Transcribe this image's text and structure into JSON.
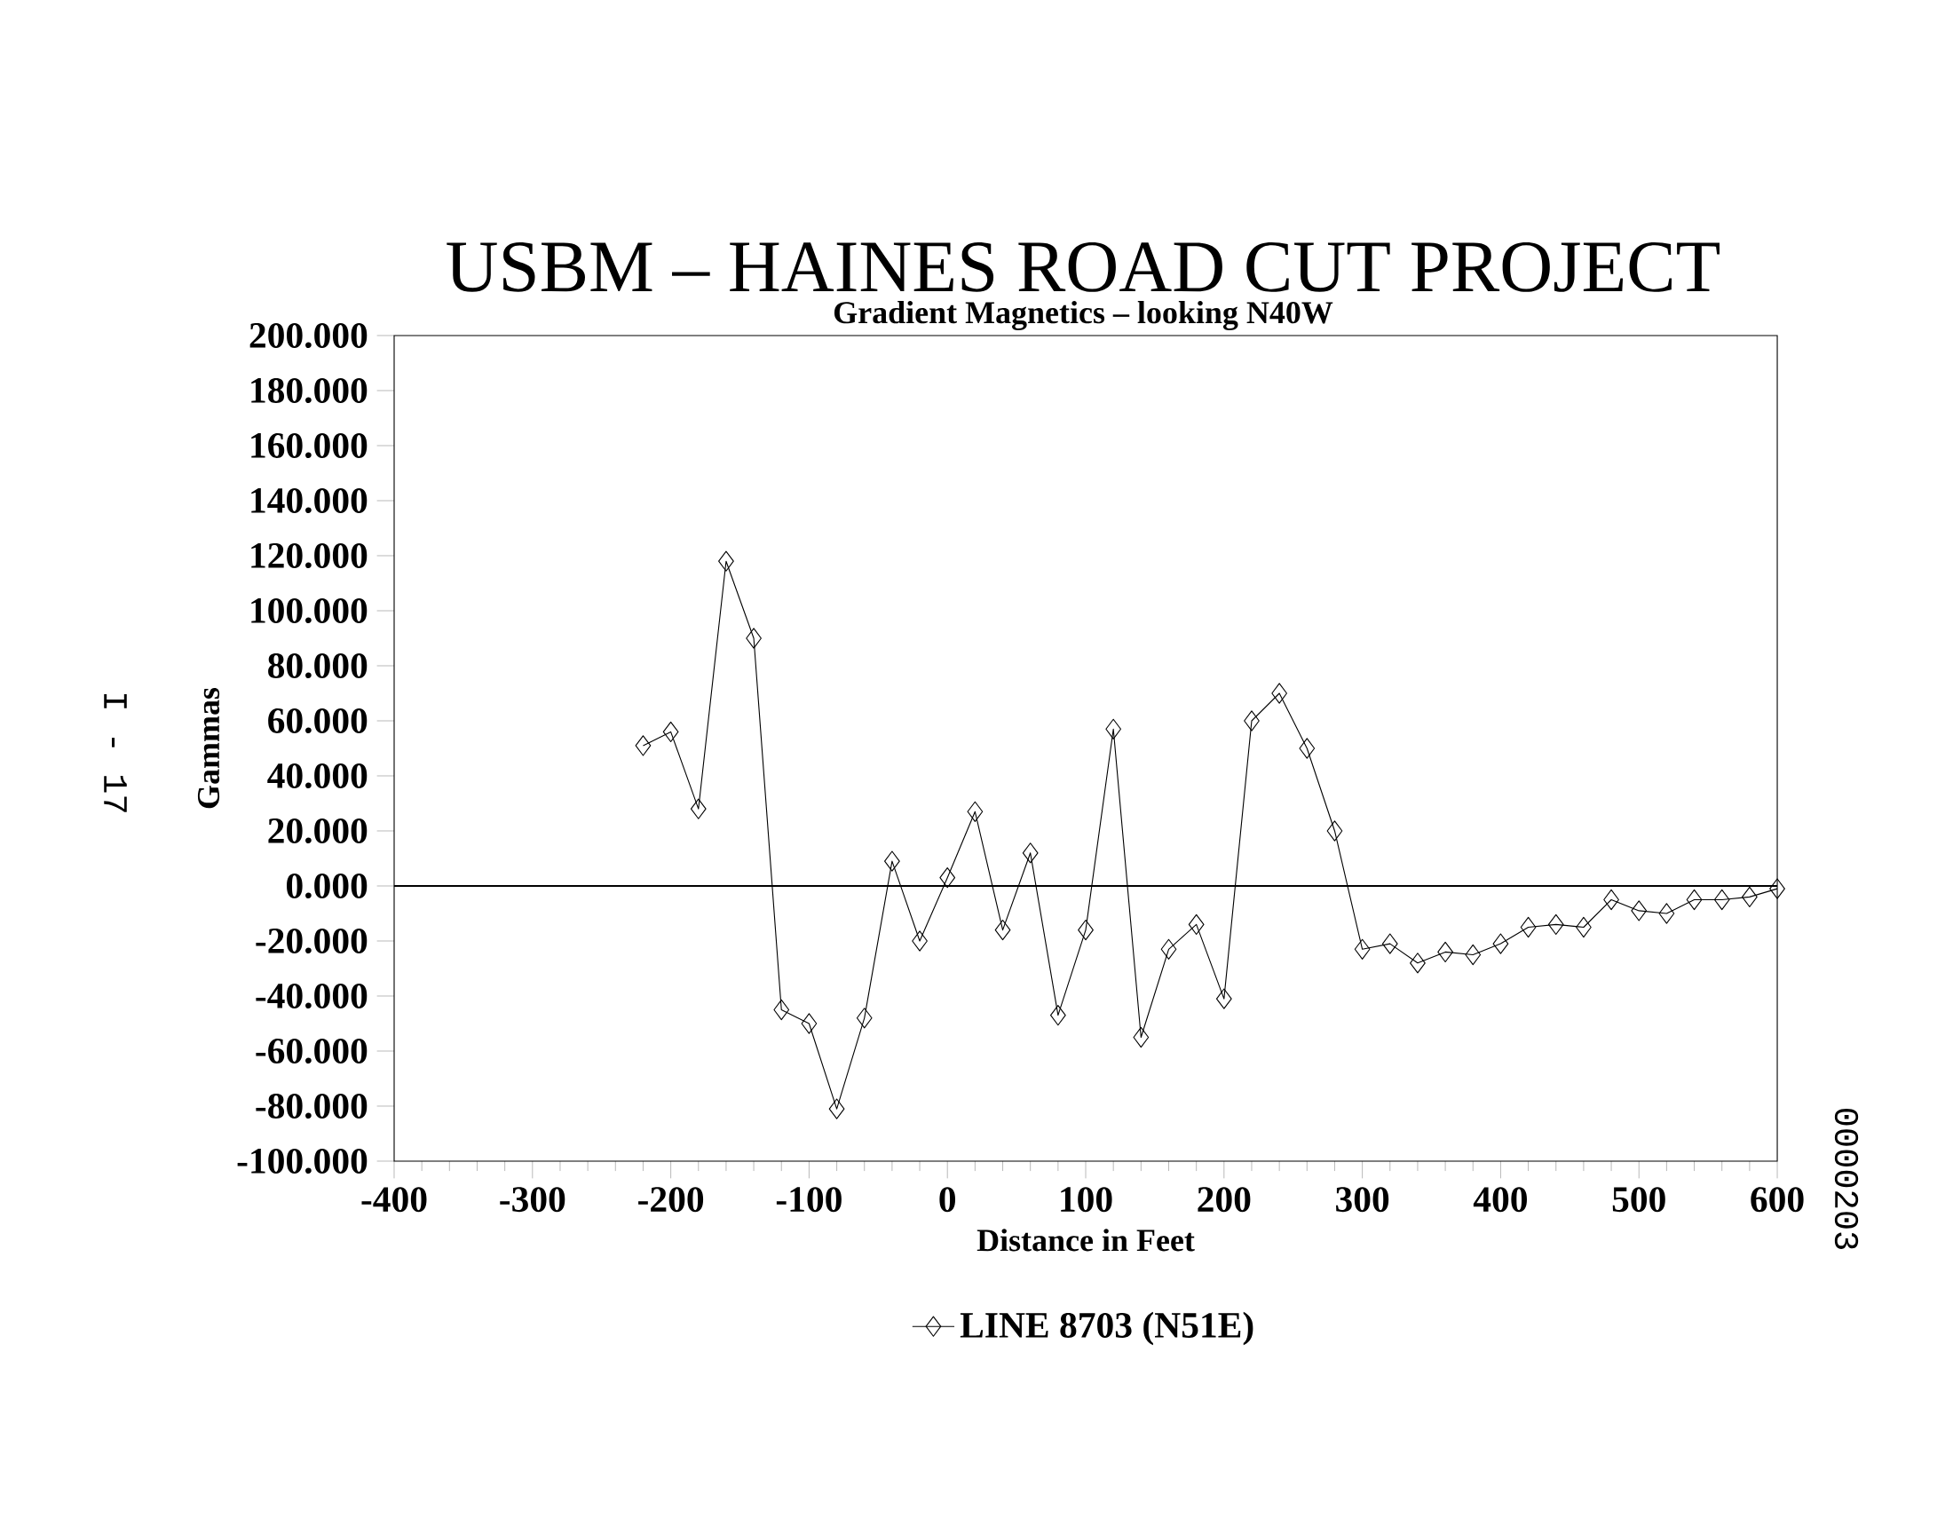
{
  "chart_data": {
    "type": "line",
    "title": "USBM – HAINES ROAD CUT PROJECT",
    "subtitle": "Gradient Magnetics – looking N40W",
    "xlabel": "Distance in Feet",
    "ylabel": "Gammas",
    "annotations": [
      "I - 17",
      "0000203"
    ],
    "xlim": [
      -400,
      600
    ],
    "xticks": [
      -400,
      -300,
      -200,
      -100,
      0,
      100,
      200,
      300,
      400,
      500,
      600
    ],
    "ylim": [
      -100,
      200
    ],
    "yticks": [
      {
        "value": -100,
        "label": "-100.000"
      },
      {
        "value": -80,
        "label": "-80.000"
      },
      {
        "value": -60,
        "label": "-60.000"
      },
      {
        "value": -40,
        "label": "-40.000"
      },
      {
        "value": -20,
        "label": "-20.000"
      },
      {
        "value": 0,
        "label": "0.000"
      },
      {
        "value": 20,
        "label": "20.000"
      },
      {
        "value": 40,
        "label": "40.000"
      },
      {
        "value": 60,
        "label": "60.000"
      },
      {
        "value": 80,
        "label": "80.000"
      },
      {
        "value": 100,
        "label": "100.000"
      },
      {
        "value": 120,
        "label": "120.000"
      },
      {
        "value": 140,
        "label": "140.000"
      },
      {
        "value": 160,
        "label": "160.000"
      },
      {
        "value": 180,
        "label": "180.000"
      },
      {
        "value": 200,
        "label": "200.000"
      }
    ],
    "ref_lines": [
      {
        "axis": "y",
        "value": 0,
        "color": "#000000"
      }
    ],
    "marker": "diamond",
    "line_style": "solid",
    "legend": "bottom",
    "grid": false,
    "x": [
      -220,
      -200,
      -180,
      -160,
      -140,
      -120,
      -100,
      -80,
      -60,
      -40,
      -20,
      0,
      20,
      40,
      60,
      80,
      100,
      120,
      140,
      160,
      180,
      200,
      220,
      240,
      260,
      280,
      300,
      320,
      340,
      360,
      380,
      400,
      420,
      440,
      460,
      480,
      500,
      520,
      540,
      560,
      580,
      600
    ],
    "series": [
      {
        "name": "LINE 8703 (N51E)",
        "color": "#000000",
        "values": [
          51,
          56,
          28,
          118,
          90,
          -45,
          -50,
          -81,
          -48,
          9,
          -20,
          3,
          27,
          -16,
          12,
          -47,
          -16,
          57,
          -55,
          -23,
          -14,
          -41,
          60,
          70,
          50,
          20,
          -23,
          -21,
          -28,
          -24,
          -25,
          -21,
          -15,
          -14,
          -15,
          -5,
          -9,
          -10,
          -5,
          -5,
          -4,
          -1
        ]
      }
    ]
  }
}
